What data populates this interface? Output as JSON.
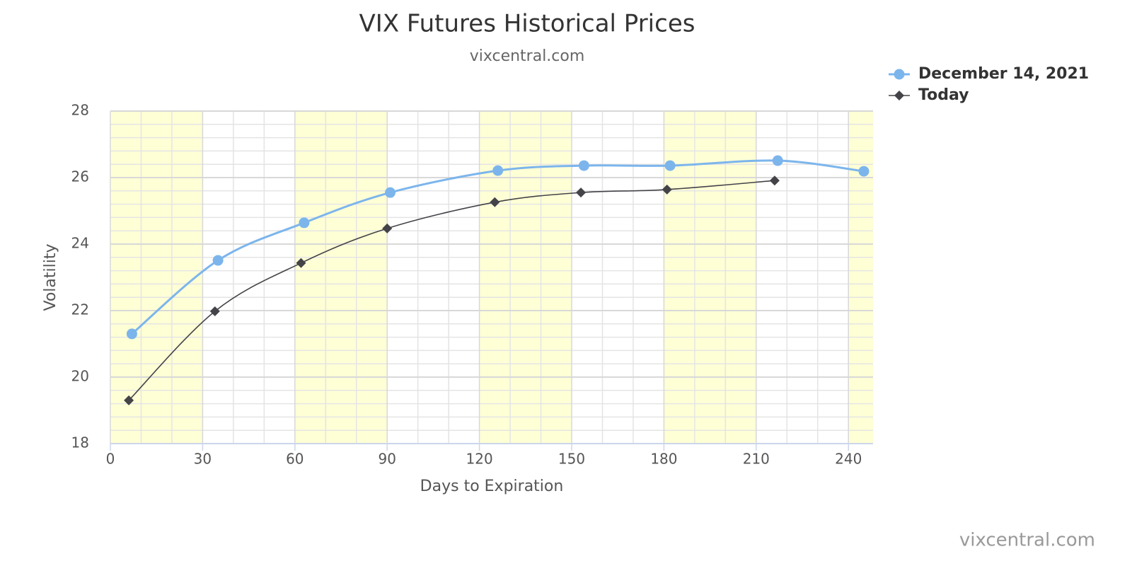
{
  "chart_data": {
    "type": "line",
    "title": "VIX Futures Historical Prices",
    "subtitle": "vixcentral.com",
    "credit": "vixcentral.com",
    "x_label": "Days to Expiration",
    "y_label": "Volatility",
    "xlim": [
      0,
      248
    ],
    "xticks": [
      0,
      30,
      60,
      90,
      120,
      150,
      180,
      210,
      240
    ],
    "ylim": [
      18,
      28
    ],
    "yticks": [
      18,
      20,
      22,
      24,
      26,
      28
    ],
    "grid": true,
    "legend": "top-right",
    "series": [
      {
        "name": "December 14, 2021",
        "color": "#7cb5ec",
        "marker": "circle",
        "x": [
          7,
          35,
          63,
          91,
          126,
          154,
          182,
          217,
          245
        ],
        "values": [
          21.3,
          23.51,
          24.64,
          25.55,
          26.21,
          26.36,
          26.36,
          26.51,
          26.19
        ]
      },
      {
        "name": "Today",
        "color": "#434348",
        "marker": "diamond",
        "x": [
          6,
          34,
          62,
          90,
          125,
          153,
          181,
          216
        ],
        "values": [
          19.3,
          21.98,
          23.43,
          24.47,
          25.26,
          25.55,
          25.64,
          25.91
        ]
      }
    ]
  }
}
